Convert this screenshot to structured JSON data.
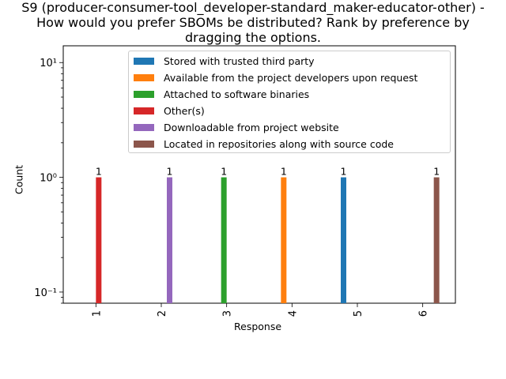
{
  "chart_data": {
    "type": "bar",
    "title_lines": [
      "S9 (producer-consumer-tool_developer-standard_maker-educator-other) -",
      "How would you prefer SBOMs be distributed? Rank by preference by",
      "dragging the options."
    ],
    "xlabel": "Response",
    "ylabel": "Count",
    "yscale": "log",
    "ylim": [
      0.08,
      14
    ],
    "yticks": [
      {
        "value": 0.1,
        "label": "10⁻¹"
      },
      {
        "value": 1,
        "label": "10⁰"
      },
      {
        "value": 10,
        "label": "10¹"
      }
    ],
    "categories": [
      "1",
      "2",
      "3",
      "4",
      "5",
      "6"
    ],
    "legend_position": "upper right",
    "grid": false,
    "series": [
      {
        "name": "Stored with trusted third party",
        "color": "#1f77b4",
        "values": [
          0,
          0,
          0,
          0,
          1,
          0
        ]
      },
      {
        "name": "Available from the project developers upon request",
        "color": "#ff7f0e",
        "values": [
          0,
          0,
          0,
          1,
          0,
          0
        ]
      },
      {
        "name": "Attached to software binaries",
        "color": "#2ca02c",
        "values": [
          0,
          0,
          1,
          0,
          0,
          0
        ]
      },
      {
        "name": "Other(s)",
        "color": "#d62728",
        "values": [
          1,
          0,
          0,
          0,
          0,
          0
        ]
      },
      {
        "name": "Downloadable from project website",
        "color": "#9467bd",
        "values": [
          0,
          1,
          0,
          0,
          0,
          0
        ]
      },
      {
        "name": "Located in repositories along with source code",
        "color": "#8c564b",
        "values": [
          0,
          0,
          0,
          0,
          0,
          1
        ]
      }
    ]
  }
}
